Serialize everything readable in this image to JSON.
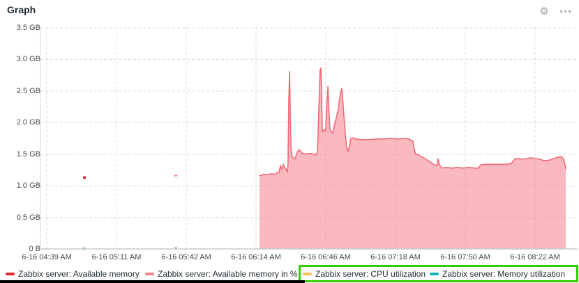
{
  "header": {
    "title": "Graph",
    "actions": [
      "gear-icon",
      "ellipsis-icon"
    ]
  },
  "chart_data": {
    "type": "area",
    "title": "Graph",
    "ylabel": "",
    "xlabel": "",
    "ylim_gb": [
      0,
      3.5
    ],
    "grid": "dashed",
    "legend_position": "bottom",
    "y_ticks": [
      "3.5 GB",
      "3.0 GB",
      "2.5 GB",
      "2.0 GB",
      "1.5 GB",
      "1.0 GB",
      "0.5 GB",
      "0 B"
    ],
    "y_tick_values_gb": [
      3.5,
      3.0,
      2.5,
      2.0,
      1.5,
      1.0,
      0.5,
      0
    ],
    "x_ticks": [
      "6-16 04:39 AM",
      "6-16 05:11 AM",
      "6-16 05:42 AM",
      "6-16 06:14 AM",
      "6-16 06:46 AM",
      "6-16 07:18 AM",
      "6-16 07:50 AM",
      "6-16 08:22 AM"
    ],
    "x_tick_interval_minutes": 32,
    "series": [
      {
        "name": "Zabbix server: Available memory",
        "type": "points",
        "color": "#df2827",
        "points_min_gb": [
          [
            17.3,
            1.13
          ]
        ]
      },
      {
        "name": "Zabbix server: Available memory in %",
        "type": "area",
        "color": "#f26a78",
        "fill": "rgba(244,116,127,0.5)",
        "isolated_points_min_gb": [
          [
            59.2,
            1.16
          ]
        ],
        "points_min_gb": [
          [
            97.6,
            1.16
          ],
          [
            99.5,
            1.18
          ],
          [
            101.4,
            1.18
          ],
          [
            103.4,
            1.19
          ],
          [
            104.6,
            1.18
          ],
          [
            105.9,
            1.21
          ],
          [
            106.6,
            1.22
          ],
          [
            107.2,
            1.32
          ],
          [
            107.8,
            1.26
          ],
          [
            108.5,
            1.34
          ],
          [
            109.1,
            1.29
          ],
          [
            109.8,
            1.26
          ],
          [
            110.4,
            1.22
          ],
          [
            110.7,
            1.35
          ],
          [
            111.0,
            2.29
          ],
          [
            111.4,
            2.81
          ],
          [
            111.7,
            2.18
          ],
          [
            112.0,
            1.68
          ],
          [
            112.3,
            1.5
          ],
          [
            113.0,
            1.44
          ],
          [
            113.9,
            1.43
          ],
          [
            114.6,
            1.5
          ],
          [
            115.2,
            1.55
          ],
          [
            115.8,
            1.57
          ],
          [
            116.5,
            1.54
          ],
          [
            117.4,
            1.51
          ],
          [
            118.7,
            1.5
          ],
          [
            120.0,
            1.51
          ],
          [
            121.3,
            1.51
          ],
          [
            122.6,
            1.5
          ],
          [
            123.5,
            1.48
          ],
          [
            124.2,
            1.54
          ],
          [
            124.8,
            2.18
          ],
          [
            125.4,
            2.84
          ],
          [
            125.8,
            2.86
          ],
          [
            126.1,
            2.4
          ],
          [
            126.4,
            1.9
          ],
          [
            126.7,
            1.85
          ],
          [
            127.4,
            1.89
          ],
          [
            128.0,
            1.87
          ],
          [
            128.3,
            2.18
          ],
          [
            129.0,
            2.57
          ],
          [
            129.3,
            2.29
          ],
          [
            129.9,
            1.89
          ],
          [
            130.6,
            1.85
          ],
          [
            131.2,
            1.83
          ],
          [
            131.8,
            1.93
          ],
          [
            132.8,
            2.07
          ],
          [
            133.8,
            2.23
          ],
          [
            134.7,
            2.45
          ],
          [
            135.4,
            2.54
          ],
          [
            135.7,
            2.4
          ],
          [
            136.3,
            2.12
          ],
          [
            137.0,
            1.79
          ],
          [
            137.6,
            1.6
          ],
          [
            138.2,
            1.55
          ],
          [
            138.9,
            1.63
          ],
          [
            139.5,
            1.75
          ],
          [
            140.5,
            1.76
          ],
          [
            141.8,
            1.74
          ],
          [
            145.0,
            1.73
          ],
          [
            148.2,
            1.73
          ],
          [
            151.4,
            1.74
          ],
          [
            154.6,
            1.74
          ],
          [
            157.8,
            1.75
          ],
          [
            161.0,
            1.74
          ],
          [
            164.2,
            1.75
          ],
          [
            165.8,
            1.74
          ],
          [
            167.4,
            1.72
          ],
          [
            168.0,
            1.7
          ],
          [
            168.6,
            1.57
          ],
          [
            169.3,
            1.5
          ],
          [
            170.6,
            1.49
          ],
          [
            171.8,
            1.46
          ],
          [
            173.1,
            1.44
          ],
          [
            174.4,
            1.41
          ],
          [
            175.7,
            1.38
          ],
          [
            177.0,
            1.35
          ],
          [
            178.2,
            1.33
          ],
          [
            179.2,
            1.32
          ],
          [
            179.5,
            1.43
          ],
          [
            179.8,
            1.37
          ],
          [
            180.5,
            1.31
          ],
          [
            181.4,
            1.28
          ],
          [
            183.4,
            1.29
          ],
          [
            185.9,
            1.28
          ],
          [
            188.5,
            1.29
          ],
          [
            191.0,
            1.28
          ],
          [
            193.6,
            1.29
          ],
          [
            196.2,
            1.28
          ],
          [
            198.1,
            1.28
          ],
          [
            199.0,
            1.33
          ],
          [
            201.0,
            1.34
          ],
          [
            204.2,
            1.34
          ],
          [
            207.4,
            1.34
          ],
          [
            210.6,
            1.34
          ],
          [
            213.1,
            1.35
          ],
          [
            214.1,
            1.4
          ],
          [
            215.0,
            1.43
          ],
          [
            216.6,
            1.43
          ],
          [
            218.2,
            1.42
          ],
          [
            219.8,
            1.43
          ],
          [
            221.4,
            1.44
          ],
          [
            223.0,
            1.44
          ],
          [
            224.6,
            1.43
          ],
          [
            226.2,
            1.42
          ],
          [
            227.8,
            1.4
          ],
          [
            229.4,
            1.4
          ],
          [
            231.0,
            1.41
          ],
          [
            232.6,
            1.43
          ],
          [
            234.2,
            1.45
          ],
          [
            235.5,
            1.46
          ],
          [
            236.5,
            1.45
          ],
          [
            237.1,
            1.42
          ],
          [
            237.8,
            1.32
          ],
          [
            238.1,
            1.27
          ]
        ]
      },
      {
        "name": "Zabbix server: CPU utilization",
        "type": "points",
        "color": "#f9c04a",
        "points_min_gb": []
      },
      {
        "name": "Zabbix server: Memory utilization",
        "type": "points",
        "color": "#8fc98f",
        "points_min_gb": [
          [
            17.0,
            0.005
          ],
          [
            59.2,
            0.01
          ]
        ]
      }
    ]
  },
  "legend": {
    "items": [
      {
        "label": "Zabbix server: Available memory",
        "color": "#df2827"
      },
      {
        "label": "Zabbix server: Available memory in %",
        "color": "#f4838a"
      },
      {
        "label": "Zabbix server: CPU utilization",
        "color": "#f9c04a"
      },
      {
        "label": "Zabbix server: Memory utilization",
        "color": "#12b5ba"
      }
    ],
    "highlight_box_color": "#33cc00",
    "highlighted_items": [
      2,
      3
    ]
  }
}
